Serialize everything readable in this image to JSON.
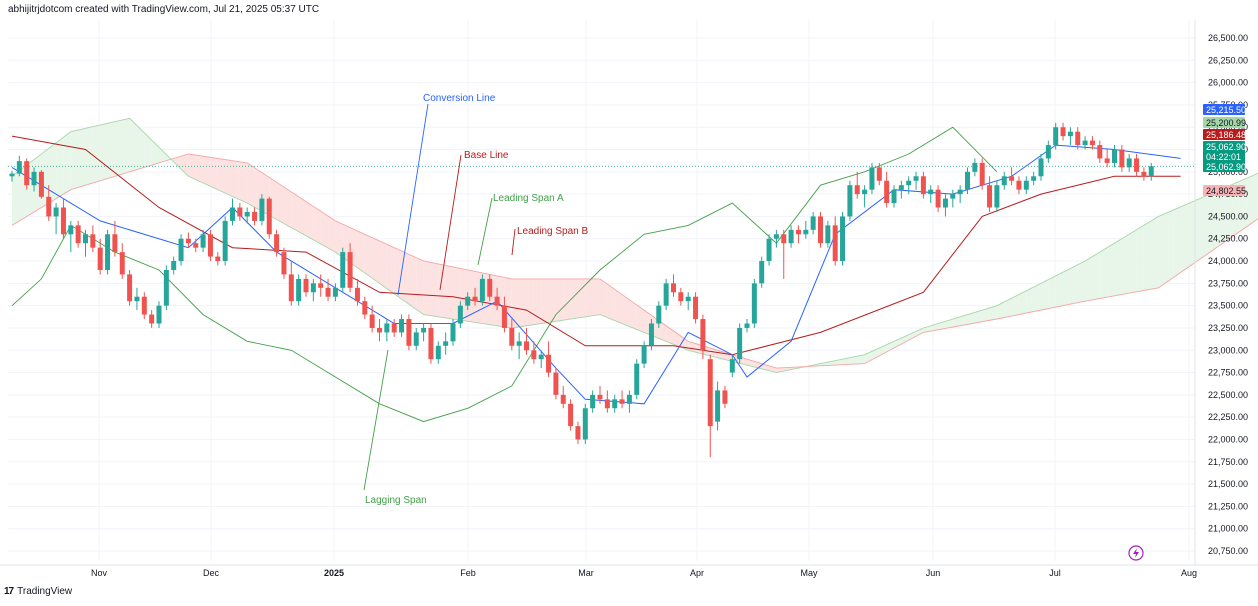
{
  "header": {
    "attribution": "abhijitrjdotcom created with TradingView.com, Jul 21, 2025 05:37 UTC"
  },
  "footer": {
    "brand": "TradingView",
    "logo_glyph": "17"
  },
  "colors": {
    "up": "#26a69a",
    "down": "#ef5350",
    "conversion": "#2962ff",
    "base": "#b71c1c",
    "lagging": "#43a047",
    "cloud_bull": "#e8f5e9",
    "cloud_bear": "#fde2e2"
  },
  "chart_data": {
    "type": "candlestick",
    "title": "",
    "xlabel": "",
    "ylabel": "",
    "ylim": [
      20750,
      26750
    ],
    "yticks": [
      "26,500.00",
      "26,250.00",
      "26,000.00",
      "25,750.00",
      "25,500.00",
      "25,250.00",
      "25,000.00",
      "24,750.00",
      "24,500.00",
      "24,250.00",
      "24,000.00",
      "23,750.00",
      "23,500.00",
      "23,250.00",
      "23,000.00",
      "22,750.00",
      "22,500.00",
      "22,250.00",
      "22,000.00",
      "21,750.00",
      "21,500.00",
      "21,250.00",
      "21,000.00",
      "20,750.00"
    ],
    "xticks": [
      "Nov",
      "Dec",
      "2025",
      "Feb",
      "Mar",
      "Apr",
      "May",
      "Jun",
      "Jul",
      "Aug"
    ],
    "price_badges": [
      {
        "label": "25,215.50",
        "color": "#2962ff"
      },
      {
        "label": "25,200.99",
        "color": "#a5d6a7",
        "text_color": "#131722"
      },
      {
        "label": "25,186.48",
        "color": "#b71c1c"
      },
      {
        "label": "25,062.90",
        "color": "#089981"
      },
      {
        "label": "04:22:01",
        "color": "#089981"
      },
      {
        "label": "25,062.90",
        "color": "#089981"
      },
      {
        "label": "24,802.55",
        "color": "#f8b4b4",
        "text_color": "#131722"
      }
    ],
    "annotations": [
      {
        "text": "Conversion Line",
        "color": "#2962ff"
      },
      {
        "text": "Base Line",
        "color": "#b71c1c"
      },
      {
        "text": "Leading Span A",
        "color": "#43a047"
      },
      {
        "text": "Leading Span B",
        "color": "#b71c1c"
      },
      {
        "text": "Lagging Span",
        "color": "#43a047"
      }
    ],
    "last_close": 25062.9,
    "candles": [
      [
        24950,
        25010,
        24890,
        24980
      ],
      [
        24980,
        25180,
        24950,
        25120
      ],
      [
        25120,
        25150,
        24800,
        24850
      ],
      [
        24850,
        25050,
        24780,
        25000
      ],
      [
        25000,
        25020,
        24700,
        24720
      ],
      [
        24720,
        24850,
        24450,
        24500
      ],
      [
        24500,
        24650,
        24300,
        24600
      ],
      [
        24600,
        24700,
        24250,
        24300
      ],
      [
        24300,
        24450,
        24100,
        24400
      ],
      [
        24400,
        24450,
        24150,
        24200
      ],
      [
        24200,
        24350,
        24050,
        24300
      ],
      [
        24300,
        24400,
        24100,
        24150
      ],
      [
        24150,
        24250,
        23850,
        23900
      ],
      [
        23900,
        24350,
        23850,
        24300
      ],
      [
        24300,
        24450,
        24050,
        24100
      ],
      [
        24100,
        24200,
        23800,
        23850
      ],
      [
        23850,
        23900,
        23500,
        23550
      ],
      [
        23550,
        23700,
        23450,
        23600
      ],
      [
        23600,
        23650,
        23350,
        23400
      ],
      [
        23400,
        23450,
        23250,
        23300
      ],
      [
        23300,
        23550,
        23250,
        23500
      ],
      [
        23500,
        23950,
        23450,
        23900
      ],
      [
        23900,
        24050,
        23850,
        24000
      ],
      [
        24000,
        24300,
        23950,
        24250
      ],
      [
        24250,
        24320,
        24150,
        24200
      ],
      [
        24200,
        24250,
        24100,
        24150
      ],
      [
        24150,
        24350,
        24100,
        24300
      ],
      [
        24300,
        24350,
        24000,
        24050
      ],
      [
        24050,
        24100,
        23950,
        24000
      ],
      [
        24000,
        24500,
        23950,
        24450
      ],
      [
        24450,
        24700,
        24400,
        24600
      ],
      [
        24600,
        24650,
        24450,
        24500
      ],
      [
        24500,
        24600,
        24420,
        24550
      ],
      [
        24550,
        24600,
        24400,
        24450
      ],
      [
        24450,
        24750,
        24400,
        24700
      ],
      [
        24700,
        24720,
        24250,
        24300
      ],
      [
        24300,
        24350,
        24050,
        24100
      ],
      [
        24100,
        24150,
        23800,
        23850
      ],
      [
        23850,
        24000,
        23500,
        23550
      ],
      [
        23550,
        23850,
        23500,
        23800
      ],
      [
        23800,
        23850,
        23600,
        23650
      ],
      [
        23650,
        23800,
        23550,
        23750
      ],
      [
        23750,
        23850,
        23600,
        23700
      ],
      [
        23700,
        23800,
        23550,
        23600
      ],
      [
        23600,
        23750,
        23550,
        23700
      ],
      [
        23700,
        24150,
        23650,
        24100
      ],
      [
        24100,
        24200,
        23650,
        23700
      ],
      [
        23700,
        23800,
        23500,
        23550
      ],
      [
        23550,
        23600,
        23350,
        23400
      ],
      [
        23400,
        23500,
        23200,
        23250
      ],
      [
        23250,
        23350,
        23100,
        23200
      ],
      [
        23200,
        23350,
        23100,
        23300
      ],
      [
        23300,
        23350,
        23150,
        23200
      ],
      [
        23200,
        23400,
        23150,
        23350
      ],
      [
        23350,
        23400,
        23000,
        23050
      ],
      [
        23050,
        23250,
        23000,
        23200
      ],
      [
        23200,
        23300,
        23100,
        23250
      ],
      [
        23250,
        23300,
        22850,
        22900
      ],
      [
        22900,
        23100,
        22850,
        23050
      ],
      [
        23050,
        23200,
        22950,
        23100
      ],
      [
        23100,
        23350,
        23050,
        23300
      ],
      [
        23300,
        23550,
        23250,
        23500
      ],
      [
        23500,
        23650,
        23450,
        23600
      ],
      [
        23600,
        23700,
        23500,
        23550
      ],
      [
        23550,
        23850,
        23500,
        23800
      ],
      [
        23800,
        23850,
        23550,
        23600
      ],
      [
        23600,
        23700,
        23450,
        23500
      ],
      [
        23500,
        23600,
        23200,
        23250
      ],
      [
        23250,
        23350,
        23000,
        23050
      ],
      [
        23050,
        23200,
        22900,
        23100
      ],
      [
        23100,
        23250,
        22950,
        23000
      ],
      [
        23000,
        23100,
        22850,
        22900
      ],
      [
        22900,
        23000,
        22800,
        22950
      ],
      [
        22950,
        23100,
        22700,
        22750
      ],
      [
        22750,
        22800,
        22450,
        22500
      ],
      [
        22500,
        22600,
        22350,
        22400
      ],
      [
        22400,
        22450,
        22100,
        22150
      ],
      [
        22150,
        22200,
        21950,
        22000
      ],
      [
        22000,
        22400,
        21950,
        22350
      ],
      [
        22350,
        22550,
        22300,
        22500
      ],
      [
        22500,
        22600,
        22400,
        22450
      ],
      [
        22450,
        22550,
        22300,
        22350
      ],
      [
        22350,
        22500,
        22300,
        22450
      ],
      [
        22450,
        22550,
        22350,
        22400
      ],
      [
        22400,
        22550,
        22300,
        22500
      ],
      [
        22500,
        22900,
        22450,
        22850
      ],
      [
        22850,
        23100,
        22800,
        23050
      ],
      [
        23050,
        23350,
        23000,
        23300
      ],
      [
        23300,
        23550,
        23250,
        23500
      ],
      [
        23500,
        23800,
        23450,
        23750
      ],
      [
        23750,
        23850,
        23600,
        23650
      ],
      [
        23650,
        23700,
        23500,
        23550
      ],
      [
        23550,
        23650,
        23450,
        23600
      ],
      [
        23600,
        23650,
        23300,
        23350
      ],
      [
        23350,
        23400,
        22900,
        23000
      ],
      [
        22900,
        22950,
        21800,
        22150
      ],
      [
        22200,
        22650,
        22100,
        22550
      ],
      [
        22550,
        22600,
        22350,
        22400
      ],
      [
        22750,
        22950,
        22700,
        22900
      ],
      [
        22900,
        23300,
        22850,
        23250
      ],
      [
        23250,
        23350,
        23200,
        23300
      ],
      [
        23300,
        23800,
        23250,
        23750
      ],
      [
        23750,
        24050,
        23700,
        24000
      ],
      [
        24000,
        24300,
        23950,
        24250
      ],
      [
        24250,
        24350,
        24150,
        24300
      ],
      [
        24300,
        24350,
        23800,
        24200
      ],
      [
        24200,
        24400,
        24150,
        24350
      ],
      [
        24350,
        24400,
        24200,
        24300
      ],
      [
        24300,
        24450,
        24250,
        24350
      ],
      [
        24350,
        24550,
        24300,
        24500
      ],
      [
        24500,
        24550,
        24150,
        24200
      ],
      [
        24200,
        24450,
        24150,
        24400
      ],
      [
        24400,
        24500,
        23950,
        24000
      ],
      [
        24000,
        24550,
        23950,
        24500
      ],
      [
        24500,
        24900,
        24450,
        24850
      ],
      [
        24850,
        25000,
        24700,
        24750
      ],
      [
        24750,
        24850,
        24600,
        24800
      ],
      [
        24800,
        25100,
        24750,
        25050
      ],
      [
        25050,
        25100,
        24850,
        24900
      ],
      [
        24900,
        25000,
        24600,
        24650
      ],
      [
        24650,
        24850,
        24600,
        24800
      ],
      [
        24800,
        24900,
        24700,
        24850
      ],
      [
        24850,
        24950,
        24750,
        24900
      ],
      [
        24900,
        25000,
        24800,
        24950
      ],
      [
        24950,
        25000,
        24700,
        24750
      ],
      [
        24750,
        24850,
        24650,
        24800
      ],
      [
        24800,
        24850,
        24550,
        24600
      ],
      [
        24600,
        24750,
        24500,
        24700
      ],
      [
        24700,
        24800,
        24600,
        24750
      ],
      [
        24750,
        24850,
        24650,
        24800
      ],
      [
        24800,
        25050,
        24750,
        25000
      ],
      [
        25000,
        25150,
        24950,
        25100
      ],
      [
        25100,
        25150,
        24800,
        24850
      ],
      [
        24850,
        24950,
        24550,
        24600
      ],
      [
        24600,
        24900,
        24550,
        24850
      ],
      [
        24850,
        25000,
        24800,
        24950
      ],
      [
        24950,
        25050,
        24850,
        24900
      ],
      [
        24900,
        24950,
        24750,
        24800
      ],
      [
        24800,
        24950,
        24750,
        24900
      ],
      [
        24900,
        25000,
        24850,
        24950
      ],
      [
        24950,
        25200,
        24900,
        25150
      ],
      [
        25150,
        25350,
        25100,
        25300
      ],
      [
        25300,
        25550,
        25250,
        25500
      ],
      [
        25500,
        25550,
        25350,
        25400
      ],
      [
        25400,
        25500,
        25300,
        25450
      ],
      [
        25450,
        25500,
        25250,
        25300
      ],
      [
        25300,
        25400,
        25250,
        25350
      ],
      [
        25350,
        25400,
        25250,
        25300
      ],
      [
        25300,
        25350,
        25100,
        25150
      ],
      [
        25150,
        25250,
        25050,
        25100
      ],
      [
        25100,
        25300,
        25050,
        25250
      ],
      [
        25250,
        25300,
        25000,
        25050
      ],
      [
        25050,
        25200,
        25000,
        25150
      ],
      [
        25150,
        25200,
        24950,
        25000
      ],
      [
        25000,
        25050,
        24900,
        24950
      ],
      [
        24950,
        25100,
        24900,
        25062.9
      ]
    ],
    "conversion_line": [
      [
        0,
        25050
      ],
      [
        12,
        24450
      ],
      [
        24,
        24150
      ],
      [
        30,
        24600
      ],
      [
        36,
        24100
      ],
      [
        44,
        23700
      ],
      [
        52,
        23300
      ],
      [
        60,
        23300
      ],
      [
        66,
        23550
      ],
      [
        74,
        22800
      ],
      [
        78,
        22450
      ],
      [
        86,
        22400
      ],
      [
        92,
        23200
      ],
      [
        98,
        22950
      ],
      [
        100,
        22700
      ],
      [
        106,
        23100
      ],
      [
        112,
        24300
      ],
      [
        120,
        24800
      ],
      [
        128,
        24750
      ],
      [
        136,
        24950
      ],
      [
        142,
        25300
      ],
      [
        150,
        25250
      ],
      [
        159,
        25150
      ]
    ],
    "base_line": [
      [
        0,
        25400
      ],
      [
        10,
        25250
      ],
      [
        20,
        24600
      ],
      [
        30,
        24150
      ],
      [
        40,
        24100
      ],
      [
        50,
        23650
      ],
      [
        60,
        23600
      ],
      [
        70,
        23450
      ],
      [
        78,
        23050
      ],
      [
        90,
        23050
      ],
      [
        98,
        22950
      ],
      [
        110,
        23200
      ],
      [
        124,
        23650
      ],
      [
        132,
        24500
      ],
      [
        140,
        24750
      ],
      [
        150,
        24950
      ],
      [
        159,
        24950
      ]
    ],
    "leading_span_a": [
      [
        0,
        24950
      ],
      [
        8,
        25450
      ],
      [
        16,
        25600
      ],
      [
        24,
        24950
      ],
      [
        32,
        24650
      ],
      [
        44,
        24100
      ],
      [
        56,
        23400
      ],
      [
        68,
        23250
      ],
      [
        80,
        23400
      ],
      [
        92,
        23000
      ],
      [
        104,
        22750
      ],
      [
        116,
        22950
      ],
      [
        124,
        23250
      ],
      [
        134,
        23500
      ],
      [
        146,
        24000
      ],
      [
        156,
        24500
      ],
      [
        170,
        25000
      ]
    ],
    "leading_span_b": [
      [
        0,
        24400
      ],
      [
        8,
        24800
      ],
      [
        16,
        25000
      ],
      [
        24,
        25200
      ],
      [
        32,
        25100
      ],
      [
        44,
        24450
      ],
      [
        56,
        24000
      ],
      [
        68,
        23800
      ],
      [
        80,
        23800
      ],
      [
        92,
        23100
      ],
      [
        104,
        22800
      ],
      [
        116,
        22850
      ],
      [
        124,
        23200
      ],
      [
        134,
        23350
      ],
      [
        146,
        23550
      ],
      [
        156,
        23700
      ],
      [
        170,
        24500
      ]
    ],
    "lagging_span": [
      [
        0,
        23500
      ],
      [
        4,
        23800
      ],
      [
        8,
        24400
      ],
      [
        14,
        24100
      ],
      [
        20,
        23900
      ],
      [
        26,
        23400
      ],
      [
        32,
        23100
      ],
      [
        38,
        23000
      ],
      [
        44,
        22700
      ],
      [
        50,
        22400
      ],
      [
        56,
        22200
      ],
      [
        62,
        22350
      ],
      [
        68,
        22600
      ],
      [
        74,
        23400
      ],
      [
        80,
        23900
      ],
      [
        86,
        24300
      ],
      [
        92,
        24400
      ],
      [
        98,
        24650
      ],
      [
        104,
        24200
      ],
      [
        110,
        24850
      ],
      [
        116,
        25000
      ],
      [
        122,
        25200
      ],
      [
        128,
        25500
      ],
      [
        134,
        25000
      ]
    ]
  }
}
